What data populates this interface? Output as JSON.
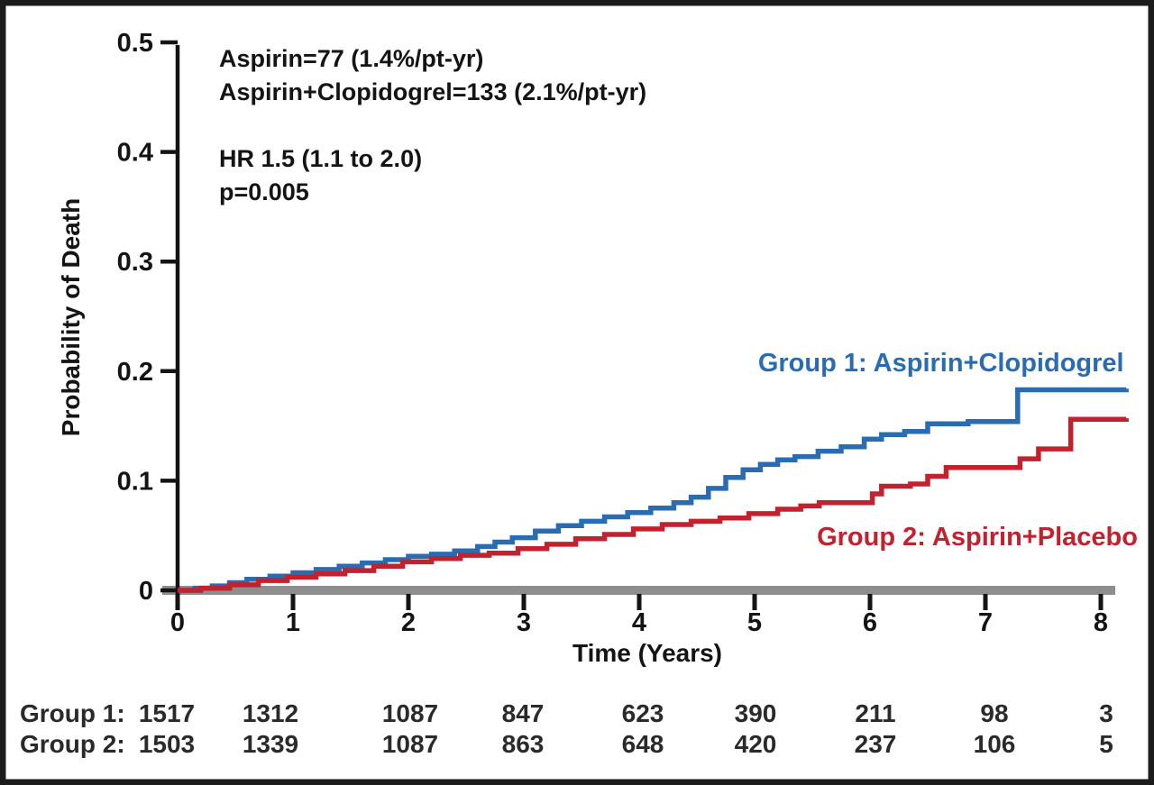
{
  "figure": {
    "kind": "kaplan-meier-survival-figure",
    "background_color": "#ffffff",
    "frame_color": "#1c1c1c"
  },
  "chart_data": {
    "type": "line",
    "subtype": "step-kaplan-meier",
    "title": "",
    "xlabel": "Time (Years)",
    "ylabel": "Probability of Death",
    "xlim": [
      0,
      8.25
    ],
    "ylim": [
      0,
      0.5
    ],
    "x_ticks": [
      0,
      1,
      2,
      3,
      4,
      5,
      6,
      7,
      8
    ],
    "x_tick_labels": [
      "0",
      "1",
      "2",
      "3",
      "4",
      "5",
      "6",
      "7",
      "8"
    ],
    "y_ticks": [
      0,
      0.1,
      0.2,
      0.3,
      0.4,
      0.5
    ],
    "y_tick_labels": [
      "0",
      "0.1",
      "0.2",
      "0.3",
      "0.4",
      "0.5"
    ],
    "grid": false,
    "legend_position": "labels-on-plot",
    "axis_line_color": "#8e8e8e",
    "tick_color": "#141414",
    "text_color": "#141414",
    "annotation_lines": [
      "Aspirin=77 (1.4%/pt-yr)",
      "Aspirin+Clopidogrel=133 (2.1%/pt-yr)",
      "",
      "HR 1.5 (1.1 to 2.0)",
      "p=0.005"
    ],
    "series": [
      {
        "name": "Group 1: Aspirin+Clopidogrel",
        "color": "#2a6cb2",
        "label_anchor": {
          "t": 8.2,
          "p": 0.2
        },
        "points": [
          [
            0,
            0
          ],
          [
            0.15,
            0.002
          ],
          [
            0.3,
            0.004
          ],
          [
            0.45,
            0.007
          ],
          [
            0.6,
            0.01
          ],
          [
            0.8,
            0.013
          ],
          [
            1.0,
            0.016
          ],
          [
            1.2,
            0.019
          ],
          [
            1.4,
            0.022
          ],
          [
            1.6,
            0.025
          ],
          [
            1.8,
            0.028
          ],
          [
            2.0,
            0.031
          ],
          [
            2.2,
            0.033
          ],
          [
            2.4,
            0.036
          ],
          [
            2.6,
            0.04
          ],
          [
            2.75,
            0.044
          ],
          [
            2.9,
            0.048
          ],
          [
            3.1,
            0.054
          ],
          [
            3.3,
            0.059
          ],
          [
            3.5,
            0.063
          ],
          [
            3.7,
            0.067
          ],
          [
            3.9,
            0.071
          ],
          [
            4.1,
            0.075
          ],
          [
            4.3,
            0.08
          ],
          [
            4.45,
            0.085
          ],
          [
            4.6,
            0.093
          ],
          [
            4.75,
            0.103
          ],
          [
            4.9,
            0.11
          ],
          [
            5.05,
            0.115
          ],
          [
            5.2,
            0.119
          ],
          [
            5.35,
            0.122
          ],
          [
            5.55,
            0.127
          ],
          [
            5.75,
            0.131
          ],
          [
            5.95,
            0.138
          ],
          [
            6.1,
            0.142
          ],
          [
            6.3,
            0.145
          ],
          [
            6.5,
            0.152
          ],
          [
            6.85,
            0.154
          ],
          [
            7.28,
            0.183
          ],
          [
            8.22,
            0.184
          ]
        ]
      },
      {
        "name": "Group 2: Aspirin+Placebo",
        "color": "#c2212e",
        "label_anchor": {
          "t": 8.32,
          "p": 0.041
        },
        "points": [
          [
            0,
            0
          ],
          [
            0.2,
            0.002
          ],
          [
            0.45,
            0.005
          ],
          [
            0.7,
            0.009
          ],
          [
            0.95,
            0.012
          ],
          [
            1.2,
            0.015
          ],
          [
            1.45,
            0.018
          ],
          [
            1.7,
            0.022
          ],
          [
            1.95,
            0.026
          ],
          [
            2.2,
            0.029
          ],
          [
            2.45,
            0.032
          ],
          [
            2.7,
            0.034
          ],
          [
            2.95,
            0.038
          ],
          [
            3.2,
            0.042
          ],
          [
            3.45,
            0.047
          ],
          [
            3.7,
            0.051
          ],
          [
            3.95,
            0.056
          ],
          [
            4.2,
            0.06
          ],
          [
            4.45,
            0.063
          ],
          [
            4.7,
            0.066
          ],
          [
            4.95,
            0.07
          ],
          [
            5.2,
            0.074
          ],
          [
            5.4,
            0.077
          ],
          [
            5.56,
            0.08
          ],
          [
            6.02,
            0.088
          ],
          [
            6.1,
            0.095
          ],
          [
            6.35,
            0.097
          ],
          [
            6.5,
            0.104
          ],
          [
            6.66,
            0.112
          ],
          [
            7.3,
            0.12
          ],
          [
            7.46,
            0.129
          ],
          [
            7.74,
            0.156
          ],
          [
            8.22,
            0.157
          ]
        ]
      }
    ],
    "risk_table": {
      "rows": [
        {
          "label": "Group 1:",
          "values": [
            "1517",
            "1312",
            "1087",
            "847",
            "623",
            "390",
            "211",
            "98",
            "3"
          ]
        },
        {
          "label": "Group 2:",
          "values": [
            "1503",
            "1339",
            "1087",
            "863",
            "648",
            "420",
            "237",
            "106",
            "5"
          ]
        }
      ]
    }
  }
}
